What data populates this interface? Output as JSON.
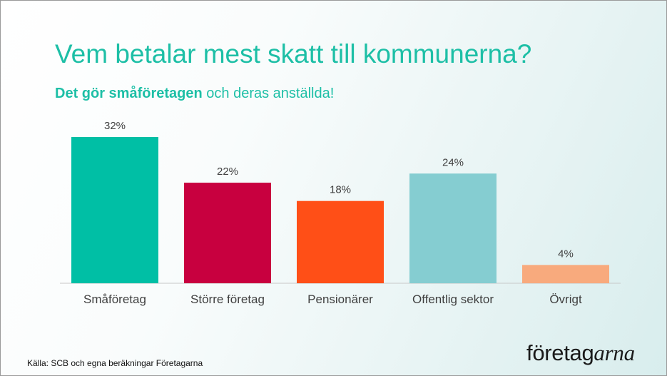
{
  "title": "Vem betalar mest skatt till kommunerna?",
  "subtitle": {
    "bold": "Det gör småföretagen",
    "rest": " och deras anställda!"
  },
  "source": "Källa: SCB och egna beräkningar Företagarna",
  "logo": {
    "part1": "företag",
    "part2": "arna"
  },
  "colors": {
    "title": "#1dbfa6",
    "axis": "#c8c8c8",
    "label_text": "#404040"
  },
  "chart_data": {
    "type": "bar",
    "categories": [
      "Småföretag",
      "Större företag",
      "Pensionärer",
      "Offentlig sektor",
      "Övrigt"
    ],
    "values": [
      32,
      22,
      18,
      24,
      4
    ],
    "value_labels": [
      "32%",
      "22%",
      "18%",
      "24%",
      "4%"
    ],
    "bar_colors": [
      "#00bfa5",
      "#c8003f",
      "#ff4f17",
      "#85cdd1",
      "#f8aa7d"
    ],
    "unit": "%",
    "ylim": [
      0,
      32
    ],
    "grid": false,
    "legend": "none"
  }
}
